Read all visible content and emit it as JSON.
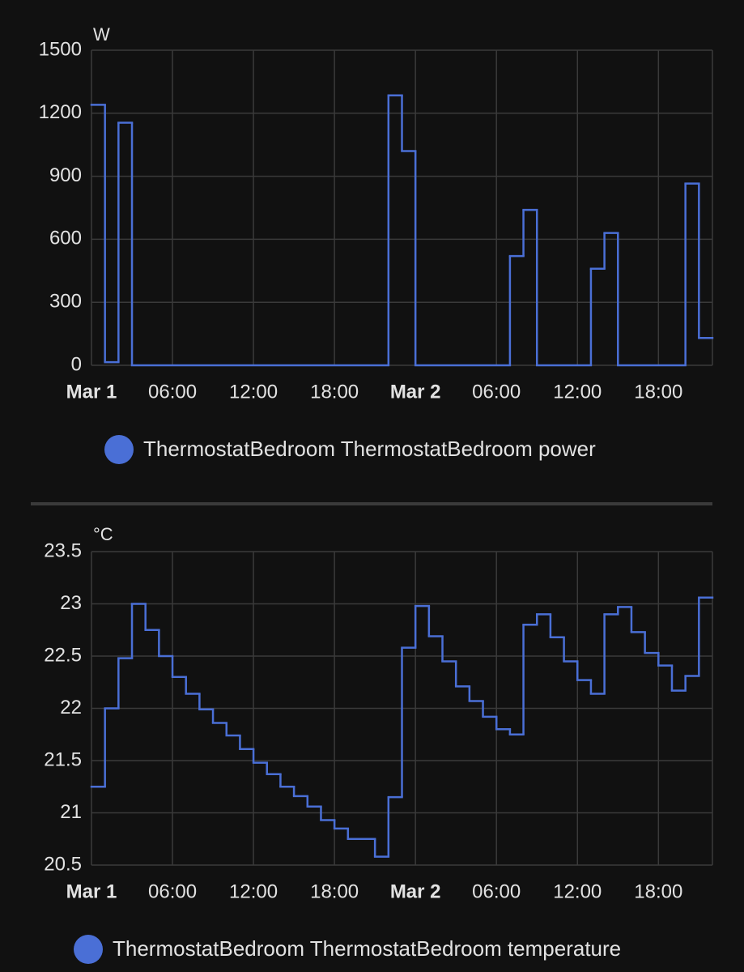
{
  "chart_data": [
    {
      "type": "step",
      "y_label": "W",
      "x": [
        0,
        1,
        2,
        3,
        22,
        23,
        24,
        31,
        32,
        33,
        37,
        38,
        39,
        44,
        45
      ],
      "xlim": [
        0,
        46
      ],
      "xticks": [
        {
          "value": 0,
          "label": "Mar 1"
        },
        {
          "value": 6,
          "label": "06:00"
        },
        {
          "value": 12,
          "label": "12:00"
        },
        {
          "value": 18,
          "label": "18:00"
        },
        {
          "value": 24,
          "label": "Mar 2"
        },
        {
          "value": 30,
          "label": "06:00"
        },
        {
          "value": 36,
          "label": "12:00"
        },
        {
          "value": 42,
          "label": "18:00"
        }
      ],
      "ylim": [
        0,
        1500
      ],
      "yticks": [
        0,
        300,
        600,
        900,
        1200,
        1500
      ],
      "grid": true,
      "series": [
        {
          "name": "ThermostatBedroom ThermostatBedroom power",
          "color": "#4a6fd6",
          "values": [
            1240,
            15,
            1155,
            0,
            1285,
            1020,
            0,
            520,
            740,
            0,
            460,
            630,
            0,
            865,
            130
          ]
        }
      ]
    },
    {
      "type": "step",
      "y_label": "°C",
      "x": [
        0,
        1,
        2,
        3,
        4,
        5,
        6,
        7,
        8,
        9,
        10,
        11,
        12,
        13,
        14,
        15,
        16,
        17,
        18,
        19,
        21,
        22,
        23,
        24,
        25,
        26,
        27,
        28,
        29,
        30,
        31,
        32,
        33,
        34,
        35,
        36,
        37,
        38,
        39,
        40,
        41,
        42,
        43,
        44,
        45
      ],
      "xlim": [
        0,
        46
      ],
      "xticks": [
        {
          "value": 0,
          "label": "Mar 1"
        },
        {
          "value": 6,
          "label": "06:00"
        },
        {
          "value": 12,
          "label": "12:00"
        },
        {
          "value": 18,
          "label": "18:00"
        },
        {
          "value": 24,
          "label": "Mar 2"
        },
        {
          "value": 30,
          "label": "06:00"
        },
        {
          "value": 36,
          "label": "12:00"
        },
        {
          "value": 42,
          "label": "18:00"
        }
      ],
      "ylim": [
        20.5,
        23.5
      ],
      "yticks": [
        20.5,
        21,
        21.5,
        22,
        22.5,
        23,
        23.5
      ],
      "grid": true,
      "series": [
        {
          "name": "ThermostatBedroom ThermostatBedroom temperature",
          "color": "#4a6fd6",
          "values": [
            21.25,
            22.0,
            22.48,
            23.0,
            22.75,
            22.5,
            22.3,
            22.14,
            21.99,
            21.86,
            21.74,
            21.61,
            21.48,
            21.37,
            21.25,
            21.16,
            21.06,
            20.93,
            20.85,
            20.75,
            20.58,
            21.15,
            22.58,
            22.98,
            22.69,
            22.45,
            22.21,
            22.07,
            21.92,
            21.8,
            21.75,
            22.8,
            22.9,
            22.68,
            22.45,
            22.27,
            22.14,
            22.9,
            22.97,
            22.73,
            22.53,
            22.41,
            22.17,
            22.31,
            23.06
          ]
        }
      ]
    }
  ]
}
